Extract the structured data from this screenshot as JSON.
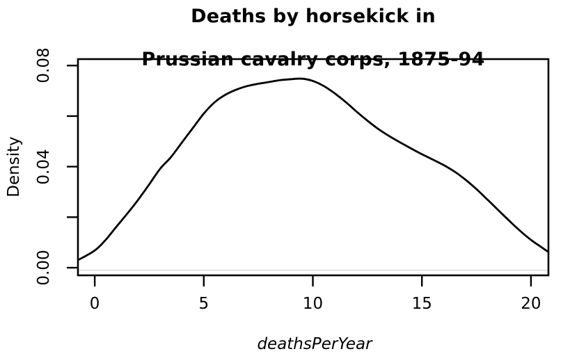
{
  "chart_data": {
    "type": "line",
    "subtype": "kernel-density",
    "title_lines": [
      "Deaths by horsekick in",
      "Prussian cavalry corps, 1875-94"
    ],
    "title": "Deaths by horsekick in\nPrussian cavalry corps, 1875-94",
    "xlabel": "deathsPerYear",
    "ylabel": "Density",
    "xlim": [
      -0.77,
      20.8
    ],
    "ylim": [
      -0.00302,
      0.08255
    ],
    "x_ticks": [
      0,
      5,
      10,
      15,
      20
    ],
    "x_tick_labels": [
      "0",
      "5",
      "10",
      "15",
      "20"
    ],
    "y_ticks": [
      0,
      0.02,
      0.04,
      0.06,
      0.08
    ],
    "y_tick_labels": [
      "0.00",
      "",
      "0.04",
      "",
      "0.08"
    ],
    "grid": false,
    "legend": null,
    "zero_line": {
      "y": -0.001,
      "color": "#e4e4e4"
    },
    "colors": {
      "curve": "#000000",
      "box": "#000000",
      "ticks": "#000000",
      "background": "#ffffff"
    },
    "series": [
      {
        "name": "density",
        "x": [
          -0.77,
          0.0,
          0.5,
          1.0,
          1.5,
          2.0,
          2.5,
          3.0,
          3.5,
          4.0,
          4.5,
          5.0,
          5.5,
          6.0,
          6.5,
          7.0,
          7.5,
          8.0,
          8.5,
          9.0,
          9.5,
          10.0,
          10.5,
          11.0,
          11.5,
          12.0,
          12.5,
          13.0,
          13.5,
          14.0,
          14.5,
          15.0,
          15.5,
          16.0,
          16.5,
          17.0,
          17.5,
          18.0,
          18.5,
          19.0,
          19.5,
          20.0,
          20.4,
          20.8
        ],
        "y": [
          0.003,
          0.0068,
          0.011,
          0.0163,
          0.0215,
          0.027,
          0.033,
          0.0392,
          0.0438,
          0.0496,
          0.0553,
          0.061,
          0.0655,
          0.0685,
          0.0705,
          0.0719,
          0.0728,
          0.0735,
          0.0742,
          0.0746,
          0.0748,
          0.0739,
          0.0719,
          0.069,
          0.0656,
          0.0618,
          0.0582,
          0.0549,
          0.0521,
          0.0496,
          0.0472,
          0.0449,
          0.0428,
          0.0406,
          0.038,
          0.0348,
          0.0311,
          0.027,
          0.0228,
          0.0186,
          0.0146,
          0.011,
          0.0086,
          0.0062
        ]
      }
    ]
  }
}
